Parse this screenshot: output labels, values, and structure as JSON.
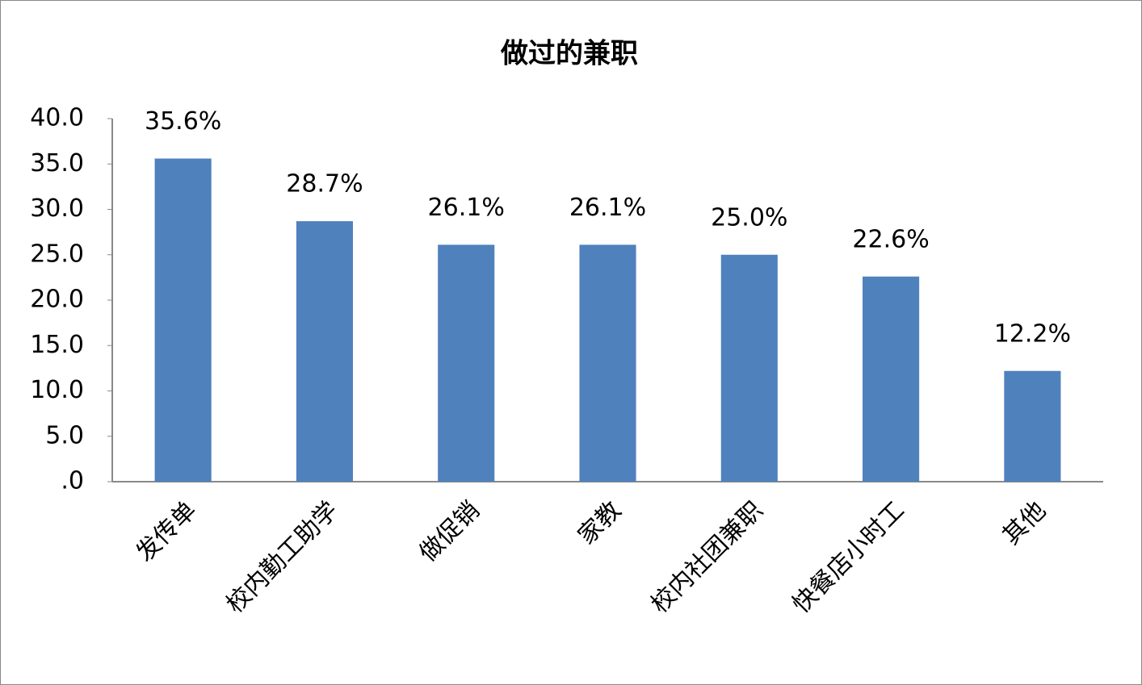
{
  "chart_data": {
    "type": "bar",
    "title": "做过的兼职",
    "categories": [
      "发传单",
      "校内勤工助学",
      "做促销",
      "家教",
      "校内社团兼职",
      "快餐店小时工",
      "其他"
    ],
    "values": [
      35.6,
      28.7,
      26.1,
      26.1,
      25.0,
      22.6,
      12.2
    ],
    "value_labels": [
      "35.6%",
      "28.7%",
      "26.1%",
      "26.1%",
      "25.0%",
      "22.6%",
      "12.2%"
    ],
    "color": "#4f81bd",
    "ylim": [
      0,
      40
    ],
    "yticks": [
      {
        "value": 0,
        "label": ".0"
      },
      {
        "value": 5,
        "label": "5.0"
      },
      {
        "value": 10,
        "label": "10.0"
      },
      {
        "value": 15,
        "label": "15.0"
      },
      {
        "value": 20,
        "label": "20.0"
      },
      {
        "value": 25,
        "label": "25.0"
      },
      {
        "value": 30,
        "label": "30.0"
      },
      {
        "value": 35,
        "label": "35.0"
      },
      {
        "value": 40,
        "label": "40.0"
      }
    ],
    "grid": false
  }
}
